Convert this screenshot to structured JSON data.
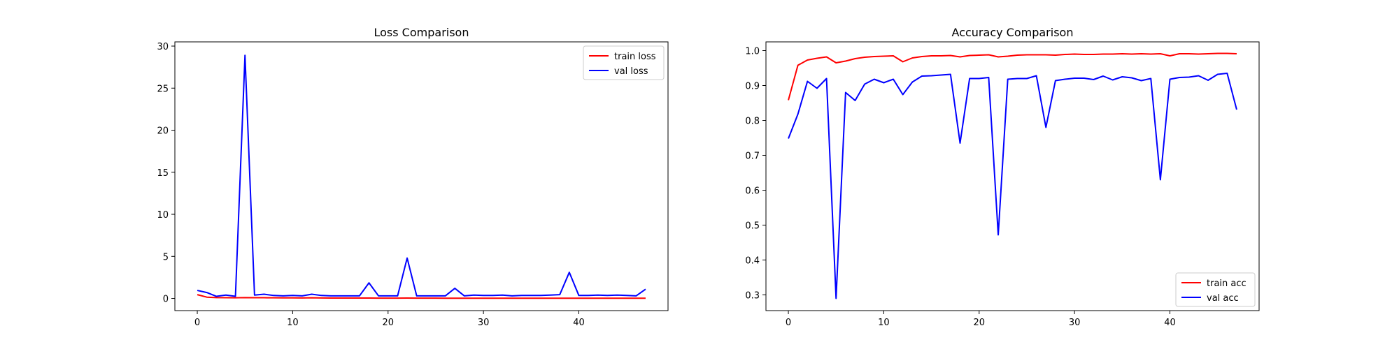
{
  "chart_data": [
    {
      "type": "line",
      "title": "Loss Comparison",
      "xlabel": "",
      "ylabel": "",
      "xlim": [
        -2.35,
        49.35
      ],
      "ylim": [
        -1.45,
        30.5
      ],
      "xticks": [
        0,
        10,
        20,
        30,
        40
      ],
      "yticks": [
        0,
        5,
        10,
        15,
        20,
        25,
        30
      ],
      "grid": false,
      "legend": "top-right",
      "x": [
        0,
        1,
        2,
        3,
        4,
        5,
        6,
        7,
        8,
        9,
        10,
        11,
        12,
        13,
        14,
        15,
        16,
        17,
        18,
        19,
        20,
        21,
        22,
        23,
        24,
        25,
        26,
        27,
        28,
        29,
        30,
        31,
        32,
        33,
        34,
        35,
        36,
        37,
        38,
        39,
        40,
        41,
        42,
        43,
        44,
        45,
        46,
        47
      ],
      "series": [
        {
          "name": "train loss",
          "color": "#ff0000",
          "values": [
            0.45,
            0.15,
            0.1,
            0.08,
            0.07,
            0.1,
            0.09,
            0.08,
            0.07,
            0.06,
            0.06,
            0.05,
            0.07,
            0.05,
            0.04,
            0.04,
            0.04,
            0.04,
            0.04,
            0.03,
            0.03,
            0.03,
            0.04,
            0.03,
            0.03,
            0.03,
            0.02,
            0.02,
            0.02,
            0.02,
            0.02,
            0.02,
            0.02,
            0.02,
            0.02,
            0.02,
            0.02,
            0.02,
            0.02,
            0.02,
            0.02,
            0.02,
            0.02,
            0.02,
            0.02,
            0.02,
            0.02,
            0.02
          ]
        },
        {
          "name": "val loss",
          "color": "#0000ff",
          "values": [
            0.95,
            0.7,
            0.25,
            0.4,
            0.25,
            28.9,
            0.4,
            0.5,
            0.35,
            0.3,
            0.35,
            0.3,
            0.5,
            0.35,
            0.3,
            0.3,
            0.3,
            0.3,
            1.85,
            0.3,
            0.3,
            0.3,
            4.8,
            0.3,
            0.3,
            0.3,
            0.3,
            1.2,
            0.3,
            0.4,
            0.35,
            0.35,
            0.4,
            0.3,
            0.35,
            0.35,
            0.35,
            0.4,
            0.45,
            3.1,
            0.35,
            0.35,
            0.4,
            0.35,
            0.4,
            0.35,
            0.3,
            1.1
          ]
        }
      ]
    },
    {
      "type": "line",
      "title": "Accuracy Comparison",
      "xlabel": "",
      "ylabel": "",
      "xlim": [
        -2.35,
        49.35
      ],
      "ylim": [
        0.255,
        1.025
      ],
      "xticks": [
        0,
        10,
        20,
        30,
        40
      ],
      "yticks": [
        0.3,
        0.4,
        0.5,
        0.6,
        0.7,
        0.8,
        0.9,
        1.0
      ],
      "yticklabels": [
        "0.3",
        "0.4",
        "0.5",
        "0.6",
        "0.7",
        "0.8",
        "0.9",
        "1.0"
      ],
      "grid": false,
      "legend": "bottom-right",
      "x": [
        0,
        1,
        2,
        3,
        4,
        5,
        6,
        7,
        8,
        9,
        10,
        11,
        12,
        13,
        14,
        15,
        16,
        17,
        18,
        19,
        20,
        21,
        22,
        23,
        24,
        25,
        26,
        27,
        28,
        29,
        30,
        31,
        32,
        33,
        34,
        35,
        36,
        37,
        38,
        39,
        40,
        41,
        42,
        43,
        44,
        45,
        46,
        47
      ],
      "series": [
        {
          "name": "train acc",
          "color": "#ff0000",
          "values": [
            0.858,
            0.958,
            0.973,
            0.978,
            0.982,
            0.965,
            0.97,
            0.977,
            0.981,
            0.983,
            0.984,
            0.985,
            0.968,
            0.979,
            0.983,
            0.985,
            0.985,
            0.986,
            0.982,
            0.986,
            0.987,
            0.988,
            0.982,
            0.984,
            0.987,
            0.988,
            0.988,
            0.988,
            0.987,
            0.989,
            0.99,
            0.989,
            0.989,
            0.99,
            0.99,
            0.991,
            0.99,
            0.991,
            0.99,
            0.991,
            0.985,
            0.991,
            0.991,
            0.99,
            0.991,
            0.992,
            0.992,
            0.991
          ]
        },
        {
          "name": "val acc",
          "color": "#0000ff",
          "values": [
            0.748,
            0.818,
            0.912,
            0.892,
            0.92,
            0.29,
            0.88,
            0.857,
            0.904,
            0.918,
            0.908,
            0.918,
            0.874,
            0.91,
            0.927,
            0.928,
            0.93,
            0.932,
            0.735,
            0.92,
            0.92,
            0.923,
            0.472,
            0.918,
            0.92,
            0.92,
            0.928,
            0.78,
            0.914,
            0.918,
            0.921,
            0.921,
            0.917,
            0.927,
            0.916,
            0.925,
            0.922,
            0.914,
            0.92,
            0.63,
            0.918,
            0.923,
            0.924,
            0.928,
            0.915,
            0.932,
            0.935,
            0.831
          ]
        }
      ]
    }
  ]
}
